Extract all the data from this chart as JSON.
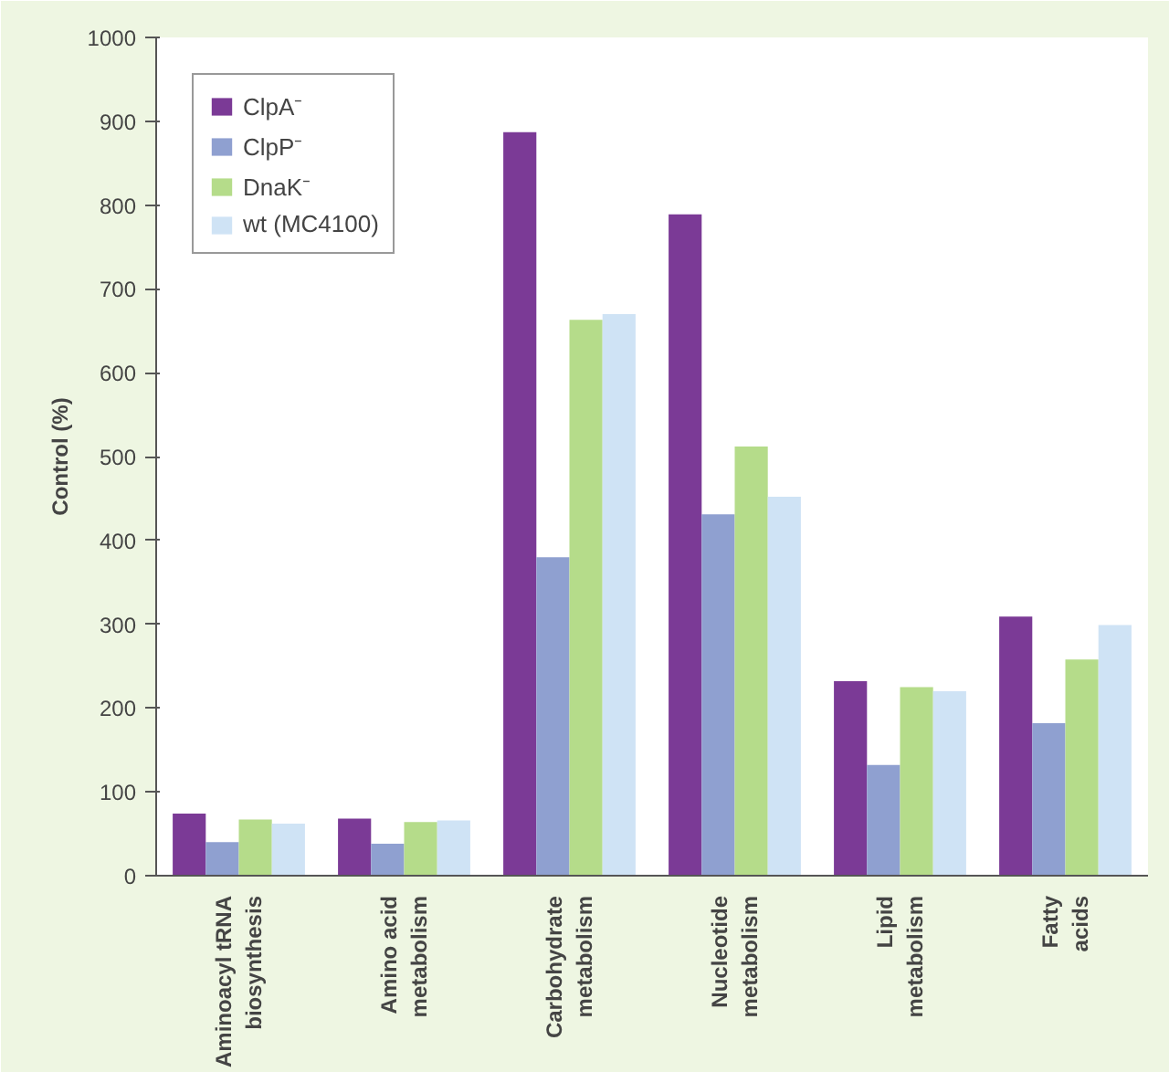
{
  "chart_data": {
    "type": "bar",
    "ylabel": "Control (%)",
    "categories": [
      "Aminoacyl tRNA\nbiosynthesis",
      "Amino acid\nmetabolism",
      "Carbohydrate\nmetabolism",
      "Nucleotide\nmetabolism",
      "Lipid\nmetabolism",
      "Fatty\nacids"
    ],
    "series": [
      {
        "name": "ClpA⁻",
        "color": "#7b3a96",
        "values": [
          74,
          68,
          887,
          789,
          232,
          309
        ]
      },
      {
        "name": "ClpP⁻",
        "color": "#8fa0d0",
        "values": [
          40,
          38,
          380,
          431,
          132,
          182
        ]
      },
      {
        "name": "DnaK⁻",
        "color": "#b5dc8a",
        "values": [
          67,
          64,
          663,
          512,
          225,
          258
        ]
      },
      {
        "name": "wt (MC4100)",
        "color": "#cfe3f5",
        "values": [
          62,
          66,
          670,
          452,
          220,
          299
        ]
      }
    ],
    "ylim": [
      0,
      1000
    ],
    "yticks": [
      0,
      100,
      200,
      300,
      400,
      500,
      600,
      700,
      800,
      900,
      1000
    ],
    "grid": false,
    "legend": "top left"
  }
}
